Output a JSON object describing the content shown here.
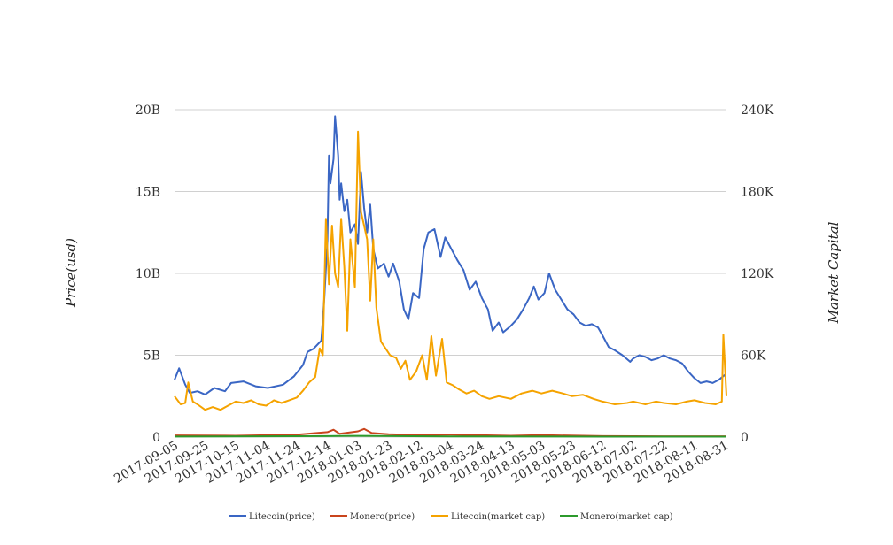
{
  "chart_data": {
    "type": "line",
    "title": "",
    "ylabel": "Price(usd)",
    "y2label": "Market Capital",
    "x_ticks": [
      "2017-09-05",
      "2017-09-25",
      "2017-10-15",
      "2017-11-04",
      "2017-11-24",
      "2017-12-14",
      "2018-01-03",
      "2018-01-23",
      "2018-02-12",
      "2018-03-04",
      "2018-03-24",
      "2018-04-13",
      "2018-05-03",
      "2018-05-23",
      "2018-06-12",
      "2018-07-02",
      "2018-07-22",
      "2018-08-11",
      "2018-08-31"
    ],
    "x_range": [
      "2017-09-05",
      "2018-09-01"
    ],
    "y_left": {
      "min": 0,
      "max": 20000000000,
      "ticks": [
        "0",
        "5B",
        "10B",
        "15B",
        "20B"
      ]
    },
    "y_right": {
      "min": 0,
      "max": 240000,
      "ticks": [
        "0",
        "60K",
        "120K",
        "180K",
        "240K"
      ]
    },
    "grid": true,
    "legend_position": "bottom",
    "series": [
      {
        "name": "Litecoin(price)",
        "axis": "left",
        "color": "#3a66c4",
        "points": [
          [
            "2017-09-05",
            3500000000.0
          ],
          [
            "2017-09-08",
            4200000000.0
          ],
          [
            "2017-09-12",
            3200000000.0
          ],
          [
            "2017-09-15",
            2700000000.0
          ],
          [
            "2017-09-20",
            2800000000.0
          ],
          [
            "2017-09-25",
            2600000000.0
          ],
          [
            "2017-10-01",
            3000000000.0
          ],
          [
            "2017-10-08",
            2800000000.0
          ],
          [
            "2017-10-12",
            3300000000.0
          ],
          [
            "2017-10-20",
            3400000000.0
          ],
          [
            "2017-10-28",
            3100000000.0
          ],
          [
            "2017-11-05",
            3000000000.0
          ],
          [
            "2017-11-15",
            3200000000.0
          ],
          [
            "2017-11-22",
            3700000000.0
          ],
          [
            "2017-11-28",
            4400000000.0
          ],
          [
            "2017-12-01",
            5200000000.0
          ],
          [
            "2017-12-05",
            5400000000.0
          ],
          [
            "2017-12-10",
            5900000000.0
          ],
          [
            "2017-12-12",
            8500000000.0
          ],
          [
            "2017-12-14",
            12000000000.0
          ],
          [
            "2017-12-15",
            17200000000.0
          ],
          [
            "2017-12-16",
            15500000000.0
          ],
          [
            "2017-12-18",
            17000000000.0
          ],
          [
            "2017-12-19",
            19600000000.0
          ],
          [
            "2017-12-21",
            17200000000.0
          ],
          [
            "2017-12-22",
            14500000000.0
          ],
          [
            "2017-12-23",
            15500000000.0
          ],
          [
            "2017-12-25",
            13800000000.0
          ],
          [
            "2017-12-27",
            14500000000.0
          ],
          [
            "2017-12-29",
            12500000000.0
          ],
          [
            "2018-01-01",
            13000000000.0
          ],
          [
            "2018-01-03",
            11800000000.0
          ],
          [
            "2018-01-05",
            16200000000.0
          ],
          [
            "2018-01-07",
            14000000000.0
          ],
          [
            "2018-01-09",
            12500000000.0
          ],
          [
            "2018-01-11",
            14200000000.0
          ],
          [
            "2018-01-13",
            11500000000.0
          ],
          [
            "2018-01-16",
            10300000000.0
          ],
          [
            "2018-01-20",
            10600000000.0
          ],
          [
            "2018-01-23",
            9800000000.0
          ],
          [
            "2018-01-26",
            10600000000.0
          ],
          [
            "2018-01-30",
            9500000000.0
          ],
          [
            "2018-02-02",
            7800000000.0
          ],
          [
            "2018-02-05",
            7200000000.0
          ],
          [
            "2018-02-08",
            8800000000.0
          ],
          [
            "2018-02-12",
            8500000000.0
          ],
          [
            "2018-02-15",
            11500000000.0
          ],
          [
            "2018-02-18",
            12500000000.0
          ],
          [
            "2018-02-22",
            12700000000.0
          ],
          [
            "2018-02-26",
            11000000000.0
          ],
          [
            "2018-03-01",
            12200000000.0
          ],
          [
            "2018-03-05",
            11500000000.0
          ],
          [
            "2018-03-09",
            10800000000.0
          ],
          [
            "2018-03-13",
            10200000000.0
          ],
          [
            "2018-03-17",
            9000000000.0
          ],
          [
            "2018-03-21",
            9500000000.0
          ],
          [
            "2018-03-25",
            8500000000.0
          ],
          [
            "2018-03-29",
            7800000000.0
          ],
          [
            "2018-04-01",
            6500000000.0
          ],
          [
            "2018-04-05",
            7000000000.0
          ],
          [
            "2018-04-08",
            6400000000.0
          ],
          [
            "2018-04-13",
            6800000000.0
          ],
          [
            "2018-04-17",
            7200000000.0
          ],
          [
            "2018-04-21",
            7800000000.0
          ],
          [
            "2018-04-25",
            8500000000.0
          ],
          [
            "2018-04-28",
            9200000000.0
          ],
          [
            "2018-05-01",
            8400000000.0
          ],
          [
            "2018-05-05",
            8800000000.0
          ],
          [
            "2018-05-08",
            10000000000.0
          ],
          [
            "2018-05-12",
            9000000000.0
          ],
          [
            "2018-05-16",
            8400000000.0
          ],
          [
            "2018-05-20",
            7800000000.0
          ],
          [
            "2018-05-24",
            7500000000.0
          ],
          [
            "2018-05-28",
            7000000000.0
          ],
          [
            "2018-06-01",
            6800000000.0
          ],
          [
            "2018-06-05",
            6900000000.0
          ],
          [
            "2018-06-09",
            6700000000.0
          ],
          [
            "2018-06-12",
            6200000000.0
          ],
          [
            "2018-06-16",
            5500000000.0
          ],
          [
            "2018-06-20",
            5300000000.0
          ],
          [
            "2018-06-25",
            5000000000.0
          ],
          [
            "2018-06-30",
            4600000000.0
          ],
          [
            "2018-07-02",
            4800000000.0
          ],
          [
            "2018-07-06",
            5000000000.0
          ],
          [
            "2018-07-10",
            4900000000.0
          ],
          [
            "2018-07-14",
            4700000000.0
          ],
          [
            "2018-07-18",
            4800000000.0
          ],
          [
            "2018-07-22",
            5000000000.0
          ],
          [
            "2018-07-26",
            4800000000.0
          ],
          [
            "2018-07-30",
            4700000000.0
          ],
          [
            "2018-08-03",
            4500000000.0
          ],
          [
            "2018-08-07",
            4000000000.0
          ],
          [
            "2018-08-11",
            3600000000.0
          ],
          [
            "2018-08-15",
            3300000000.0
          ],
          [
            "2018-08-19",
            3400000000.0
          ],
          [
            "2018-08-23",
            3300000000.0
          ],
          [
            "2018-08-27",
            3500000000.0
          ],
          [
            "2018-08-31",
            3800000000.0
          ],
          [
            "2018-09-01",
            3800000000.0
          ]
        ]
      },
      {
        "name": "Monero(price)",
        "axis": "left",
        "color": "#c9441c",
        "points": [
          [
            "2017-09-05",
            100000000.0
          ],
          [
            "2017-10-15",
            80000000.0
          ],
          [
            "2017-11-24",
            150000000.0
          ],
          [
            "2017-12-14",
            300000000.0
          ],
          [
            "2017-12-18",
            450000000.0
          ],
          [
            "2017-12-22",
            200000000.0
          ],
          [
            "2018-01-03",
            350000000.0
          ],
          [
            "2018-01-07",
            500000000.0
          ],
          [
            "2018-01-12",
            250000000.0
          ],
          [
            "2018-01-23",
            180000000.0
          ],
          [
            "2018-02-12",
            120000000.0
          ],
          [
            "2018-03-04",
            150000000.0
          ],
          [
            "2018-04-13",
            80000000.0
          ],
          [
            "2018-05-03",
            120000000.0
          ],
          [
            "2018-06-12",
            60000000.0
          ],
          [
            "2018-07-22",
            50000000.0
          ],
          [
            "2018-09-01",
            50000000.0
          ]
        ]
      },
      {
        "name": "Litecoin(market cap)",
        "axis": "right",
        "color": "#f5a300",
        "points": [
          [
            "2017-09-05",
            30000
          ],
          [
            "2017-09-09",
            24000
          ],
          [
            "2017-09-12",
            25000
          ],
          [
            "2017-09-14",
            40000
          ],
          [
            "2017-09-17",
            26000
          ],
          [
            "2017-09-20",
            24000
          ],
          [
            "2017-09-25",
            20000
          ],
          [
            "2017-09-30",
            22000
          ],
          [
            "2017-10-05",
            20000
          ],
          [
            "2017-10-10",
            23000
          ],
          [
            "2017-10-15",
            26000
          ],
          [
            "2017-10-20",
            25000
          ],
          [
            "2017-10-25",
            27000
          ],
          [
            "2017-10-30",
            24000
          ],
          [
            "2017-11-04",
            23000
          ],
          [
            "2017-11-09",
            27000
          ],
          [
            "2017-11-14",
            25000
          ],
          [
            "2017-11-19",
            27000
          ],
          [
            "2017-11-24",
            29000
          ],
          [
            "2017-11-28",
            34000
          ],
          [
            "2017-12-02",
            40000
          ],
          [
            "2017-12-06",
            44000
          ],
          [
            "2017-12-09",
            65000
          ],
          [
            "2017-12-11",
            60000
          ],
          [
            "2017-12-13",
            160000
          ],
          [
            "2017-12-15",
            112000
          ],
          [
            "2017-12-17",
            155000
          ],
          [
            "2017-12-19",
            120000
          ],
          [
            "2017-12-21",
            110000
          ],
          [
            "2017-12-23",
            160000
          ],
          [
            "2017-12-25",
            125000
          ],
          [
            "2017-12-27",
            78000
          ],
          [
            "2017-12-29",
            145000
          ],
          [
            "2018-01-01",
            110000
          ],
          [
            "2018-01-03",
            224000
          ],
          [
            "2018-01-05",
            165000
          ],
          [
            "2018-01-07",
            155000
          ],
          [
            "2018-01-09",
            145000
          ],
          [
            "2018-01-11",
            100000
          ],
          [
            "2018-01-13",
            145000
          ],
          [
            "2018-01-15",
            95000
          ],
          [
            "2018-01-18",
            70000
          ],
          [
            "2018-01-21",
            65000
          ],
          [
            "2018-01-24",
            60000
          ],
          [
            "2018-01-28",
            58000
          ],
          [
            "2018-01-31",
            50000
          ],
          [
            "2018-02-03",
            56000
          ],
          [
            "2018-02-06",
            42000
          ],
          [
            "2018-02-10",
            48000
          ],
          [
            "2018-02-14",
            60000
          ],
          [
            "2018-02-17",
            42000
          ],
          [
            "2018-02-20",
            74000
          ],
          [
            "2018-02-23",
            45000
          ],
          [
            "2018-02-27",
            72000
          ],
          [
            "2018-03-02",
            40000
          ],
          [
            "2018-03-06",
            38000
          ],
          [
            "2018-03-10",
            35000
          ],
          [
            "2018-03-15",
            32000
          ],
          [
            "2018-03-20",
            34000
          ],
          [
            "2018-03-25",
            30000
          ],
          [
            "2018-03-30",
            28000
          ],
          [
            "2018-04-05",
            30000
          ],
          [
            "2018-04-13",
            28000
          ],
          [
            "2018-04-20",
            32000
          ],
          [
            "2018-04-27",
            34000
          ],
          [
            "2018-05-03",
            32000
          ],
          [
            "2018-05-10",
            34000
          ],
          [
            "2018-05-17",
            32000
          ],
          [
            "2018-05-23",
            30000
          ],
          [
            "2018-05-30",
            31000
          ],
          [
            "2018-06-06",
            28000
          ],
          [
            "2018-06-12",
            26000
          ],
          [
            "2018-06-20",
            24000
          ],
          [
            "2018-06-28",
            25000
          ],
          [
            "2018-07-02",
            26000
          ],
          [
            "2018-07-10",
            24000
          ],
          [
            "2018-07-17",
            26000
          ],
          [
            "2018-07-22",
            25000
          ],
          [
            "2018-07-30",
            24000
          ],
          [
            "2018-08-06",
            26000
          ],
          [
            "2018-08-11",
            27000
          ],
          [
            "2018-08-18",
            25000
          ],
          [
            "2018-08-25",
            24000
          ],
          [
            "2018-08-29",
            26000
          ],
          [
            "2018-08-30",
            75000
          ],
          [
            "2018-09-01",
            30000
          ]
        ]
      },
      {
        "name": "Monero(market cap)",
        "axis": "right",
        "color": "#2c9a2c",
        "points": [
          [
            "2017-09-05",
            400
          ],
          [
            "2017-12-14",
            700
          ],
          [
            "2018-01-03",
            900
          ],
          [
            "2018-03-04",
            500
          ],
          [
            "2018-06-12",
            350
          ],
          [
            "2018-09-01",
            300
          ]
        ]
      }
    ]
  }
}
